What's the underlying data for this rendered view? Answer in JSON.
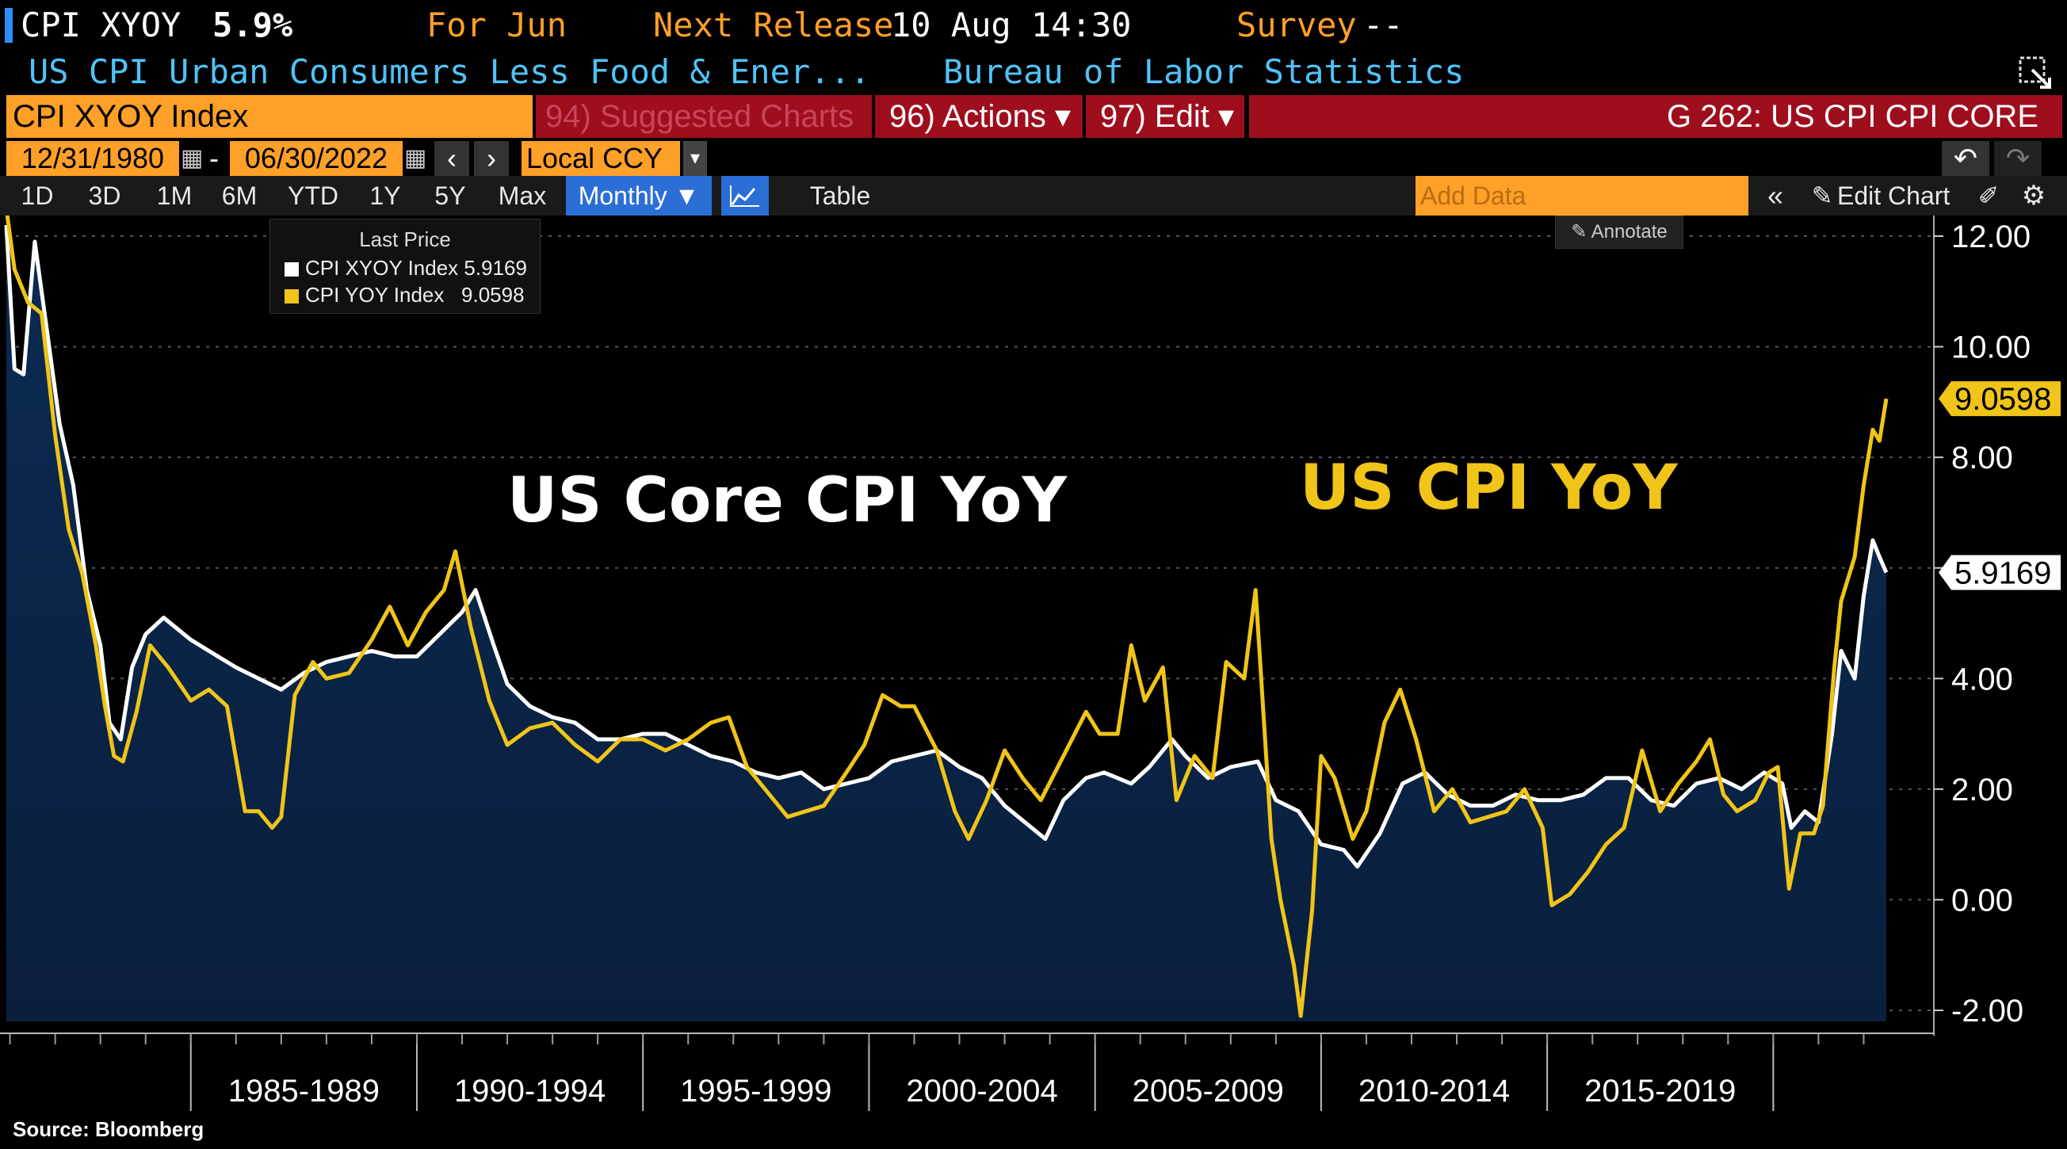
{
  "header": {
    "ticker": "CPI XYOY",
    "last_value": "5.9%",
    "period": "For Jun",
    "next_release_label": "Next Release",
    "next_release_value": "10 Aug 14:30",
    "survey_label": "Survey",
    "survey_value": "--",
    "description": "US CPI Urban Consumers Less Food & Ener...",
    "source_agency": "Bureau of Labor Statistics"
  },
  "toolbar": {
    "security_field": "CPI XYOY Index",
    "suggested_charts": "94) Suggested Charts",
    "actions": "96) Actions ▾",
    "edit": "97) Edit ▾",
    "chart_id": "G 262: US CPI CPI CORE"
  },
  "range": {
    "start_date": "12/31/1980",
    "end_date": "06/30/2022",
    "currency": "Local CCY"
  },
  "period_tabs": [
    "1D",
    "3D",
    "1M",
    "6M",
    "YTD",
    "1Y",
    "5Y",
    "Max"
  ],
  "frequency": "Monthly ▼",
  "table_label": "Table",
  "add_data_placeholder": "Add Data",
  "edit_chart_label": "Edit Chart",
  "annotate_label": "Annotate",
  "legend": {
    "title": "Last Price",
    "items": [
      {
        "label": "CPI XYOY Index 5.9169",
        "color": "#ffffff"
      },
      {
        "label": "CPI YOY Index   9.0598",
        "color": "#f0c419"
      }
    ]
  },
  "source_note": "Source: Bloomberg",
  "colors": {
    "core": "#ffffff",
    "headline": "#f0c419",
    "area_top": "#0b2a52",
    "area_bottom": "#0a1f3d",
    "grid": "#555555",
    "amber": "#ffa028"
  },
  "chart_data": {
    "type": "line",
    "x_unit": "year",
    "xlim": [
      1980.92,
      2022.5
    ],
    "ylim": [
      -2.2,
      12.2
    ],
    "y_ticks": [
      "12.00",
      "10.00",
      "8.00",
      "6.00",
      "4.00",
      "2.00",
      "0.00",
      "-2.00"
    ],
    "x_tick_labels": [
      "1985-1989",
      "1990-1994",
      "1995-1999",
      "2000-2004",
      "2005-2009",
      "2010-2014",
      "2015-2019"
    ],
    "annotations": [
      "US Core CPI YoY",
      "US CPI YoY"
    ],
    "last_labels": [
      "9.0598",
      "5.9169"
    ],
    "series": [
      {
        "name": "CPI XYOY Index",
        "last": 5.9169,
        "points": [
          [
            1980.92,
            12.2
          ],
          [
            1981.1,
            9.6
          ],
          [
            1981.3,
            9.5
          ],
          [
            1981.55,
            11.9
          ],
          [
            1981.9,
            9.8
          ],
          [
            1982.1,
            8.6
          ],
          [
            1982.4,
            7.5
          ],
          [
            1982.7,
            5.6
          ],
          [
            1983.0,
            4.6
          ],
          [
            1983.2,
            3.2
          ],
          [
            1983.45,
            2.9
          ],
          [
            1983.7,
            4.2
          ],
          [
            1984.0,
            4.8
          ],
          [
            1984.4,
            5.1
          ],
          [
            1985.0,
            4.7
          ],
          [
            1985.6,
            4.4
          ],
          [
            1986.0,
            4.2
          ],
          [
            1986.5,
            4.0
          ],
          [
            1987.0,
            3.8
          ],
          [
            1987.5,
            4.1
          ],
          [
            1988.0,
            4.3
          ],
          [
            1988.5,
            4.4
          ],
          [
            1989.0,
            4.5
          ],
          [
            1989.5,
            4.4
          ],
          [
            1990.0,
            4.4
          ],
          [
            1990.5,
            4.8
          ],
          [
            1991.0,
            5.2
          ],
          [
            1991.3,
            5.6
          ],
          [
            1991.7,
            4.6
          ],
          [
            1992.0,
            3.9
          ],
          [
            1992.5,
            3.5
          ],
          [
            1993.0,
            3.3
          ],
          [
            1993.5,
            3.2
          ],
          [
            1994.0,
            2.9
          ],
          [
            1994.5,
            2.9
          ],
          [
            1995.0,
            3.0
          ],
          [
            1995.5,
            3.0
          ],
          [
            1996.0,
            2.8
          ],
          [
            1996.5,
            2.6
          ],
          [
            1997.0,
            2.5
          ],
          [
            1997.5,
            2.3
          ],
          [
            1998.0,
            2.2
          ],
          [
            1998.5,
            2.3
          ],
          [
            1999.0,
            2.0
          ],
          [
            1999.5,
            2.1
          ],
          [
            2000.0,
            2.2
          ],
          [
            2000.5,
            2.5
          ],
          [
            2001.0,
            2.6
          ],
          [
            2001.5,
            2.7
          ],
          [
            2002.0,
            2.4
          ],
          [
            2002.5,
            2.2
          ],
          [
            2003.0,
            1.7
          ],
          [
            2003.6,
            1.3
          ],
          [
            2003.9,
            1.1
          ],
          [
            2004.3,
            1.8
          ],
          [
            2004.8,
            2.2
          ],
          [
            2005.2,
            2.3
          ],
          [
            2005.8,
            2.1
          ],
          [
            2006.2,
            2.4
          ],
          [
            2006.7,
            2.9
          ],
          [
            2007.0,
            2.6
          ],
          [
            2007.5,
            2.2
          ],
          [
            2008.0,
            2.4
          ],
          [
            2008.6,
            2.5
          ],
          [
            2009.0,
            1.8
          ],
          [
            2009.5,
            1.6
          ],
          [
            2010.0,
            1.0
          ],
          [
            2010.5,
            0.9
          ],
          [
            2010.8,
            0.6
          ],
          [
            2011.3,
            1.2
          ],
          [
            2011.8,
            2.1
          ],
          [
            2012.3,
            2.3
          ],
          [
            2012.8,
            1.9
          ],
          [
            2013.3,
            1.7
          ],
          [
            2013.8,
            1.7
          ],
          [
            2014.3,
            1.9
          ],
          [
            2014.8,
            1.8
          ],
          [
            2015.3,
            1.8
          ],
          [
            2015.8,
            1.9
          ],
          [
            2016.3,
            2.2
          ],
          [
            2016.8,
            2.2
          ],
          [
            2017.3,
            1.8
          ],
          [
            2017.8,
            1.7
          ],
          [
            2018.3,
            2.1
          ],
          [
            2018.8,
            2.2
          ],
          [
            2019.3,
            2.0
          ],
          [
            2019.8,
            2.3
          ],
          [
            2020.2,
            2.1
          ],
          [
            2020.4,
            1.3
          ],
          [
            2020.7,
            1.6
          ],
          [
            2021.0,
            1.4
          ],
          [
            2021.3,
            3.0
          ],
          [
            2021.5,
            4.5
          ],
          [
            2021.8,
            4.0
          ],
          [
            2022.0,
            5.5
          ],
          [
            2022.2,
            6.5
          ],
          [
            2022.35,
            6.2
          ],
          [
            2022.5,
            5.9169
          ]
        ]
      },
      {
        "name": "CPI YOY Index",
        "last": 9.0598,
        "points": [
          [
            1980.92,
            12.5
          ],
          [
            1981.1,
            11.4
          ],
          [
            1981.4,
            10.8
          ],
          [
            1981.7,
            10.6
          ],
          [
            1982.0,
            8.4
          ],
          [
            1982.3,
            6.7
          ],
          [
            1982.6,
            5.9
          ],
          [
            1982.9,
            4.6
          ],
          [
            1983.1,
            3.5
          ],
          [
            1983.3,
            2.6
          ],
          [
            1983.5,
            2.5
          ],
          [
            1983.8,
            3.4
          ],
          [
            1984.1,
            4.6
          ],
          [
            1984.5,
            4.2
          ],
          [
            1985.0,
            3.6
          ],
          [
            1985.4,
            3.8
          ],
          [
            1985.8,
            3.5
          ],
          [
            1986.2,
            1.6
          ],
          [
            1986.5,
            1.6
          ],
          [
            1986.8,
            1.3
          ],
          [
            1987.0,
            1.5
          ],
          [
            1987.3,
            3.7
          ],
          [
            1987.7,
            4.3
          ],
          [
            1988.0,
            4.0
          ],
          [
            1988.5,
            4.1
          ],
          [
            1989.0,
            4.7
          ],
          [
            1989.4,
            5.3
          ],
          [
            1989.8,
            4.6
          ],
          [
            1990.2,
            5.2
          ],
          [
            1990.6,
            5.6
          ],
          [
            1990.85,
            6.3
          ],
          [
            1991.2,
            4.9
          ],
          [
            1991.6,
            3.6
          ],
          [
            1992.0,
            2.8
          ],
          [
            1992.5,
            3.1
          ],
          [
            1993.0,
            3.2
          ],
          [
            1993.5,
            2.8
          ],
          [
            1994.0,
            2.5
          ],
          [
            1994.5,
            2.9
          ],
          [
            1995.0,
            2.9
          ],
          [
            1995.5,
            2.7
          ],
          [
            1996.0,
            2.9
          ],
          [
            1996.5,
            3.2
          ],
          [
            1996.9,
            3.3
          ],
          [
            1997.3,
            2.4
          ],
          [
            1997.8,
            1.9
          ],
          [
            1998.2,
            1.5
          ],
          [
            1998.6,
            1.6
          ],
          [
            1999.0,
            1.7
          ],
          [
            1999.5,
            2.3
          ],
          [
            1999.9,
            2.8
          ],
          [
            2000.3,
            3.7
          ],
          [
            2000.7,
            3.5
          ],
          [
            2001.0,
            3.5
          ],
          [
            2001.5,
            2.7
          ],
          [
            2001.9,
            1.6
          ],
          [
            2002.2,
            1.1
          ],
          [
            2002.6,
            1.8
          ],
          [
            2003.0,
            2.7
          ],
          [
            2003.4,
            2.2
          ],
          [
            2003.8,
            1.8
          ],
          [
            2004.3,
            2.6
          ],
          [
            2004.8,
            3.4
          ],
          [
            2005.1,
            3.0
          ],
          [
            2005.5,
            3.0
          ],
          [
            2005.8,
            4.6
          ],
          [
            2006.1,
            3.6
          ],
          [
            2006.5,
            4.2
          ],
          [
            2006.8,
            1.8
          ],
          [
            2007.2,
            2.6
          ],
          [
            2007.6,
            2.2
          ],
          [
            2007.9,
            4.3
          ],
          [
            2008.3,
            4.0
          ],
          [
            2008.55,
            5.6
          ],
          [
            2008.9,
            1.1
          ],
          [
            2009.1,
            0.0
          ],
          [
            2009.4,
            -1.2
          ],
          [
            2009.55,
            -2.1
          ],
          [
            2009.8,
            -0.2
          ],
          [
            2010.0,
            2.6
          ],
          [
            2010.3,
            2.2
          ],
          [
            2010.7,
            1.1
          ],
          [
            2011.0,
            1.6
          ],
          [
            2011.4,
            3.2
          ],
          [
            2011.75,
            3.8
          ],
          [
            2012.1,
            2.9
          ],
          [
            2012.5,
            1.6
          ],
          [
            2012.9,
            2.0
          ],
          [
            2013.3,
            1.4
          ],
          [
            2013.7,
            1.5
          ],
          [
            2014.1,
            1.6
          ],
          [
            2014.5,
            2.0
          ],
          [
            2014.9,
            1.3
          ],
          [
            2015.1,
            -0.1
          ],
          [
            2015.5,
            0.1
          ],
          [
            2015.9,
            0.5
          ],
          [
            2016.3,
            1.0
          ],
          [
            2016.7,
            1.3
          ],
          [
            2017.1,
            2.7
          ],
          [
            2017.5,
            1.6
          ],
          [
            2017.9,
            2.1
          ],
          [
            2018.3,
            2.5
          ],
          [
            2018.6,
            2.9
          ],
          [
            2018.9,
            1.9
          ],
          [
            2019.2,
            1.6
          ],
          [
            2019.6,
            1.8
          ],
          [
            2019.9,
            2.3
          ],
          [
            2020.1,
            2.4
          ],
          [
            2020.35,
            0.2
          ],
          [
            2020.6,
            1.2
          ],
          [
            2020.9,
            1.2
          ],
          [
            2021.1,
            1.7
          ],
          [
            2021.35,
            4.2
          ],
          [
            2021.5,
            5.4
          ],
          [
            2021.8,
            6.2
          ],
          [
            2022.0,
            7.5
          ],
          [
            2022.2,
            8.5
          ],
          [
            2022.35,
            8.3
          ],
          [
            2022.5,
            9.0598
          ]
        ]
      }
    ]
  }
}
